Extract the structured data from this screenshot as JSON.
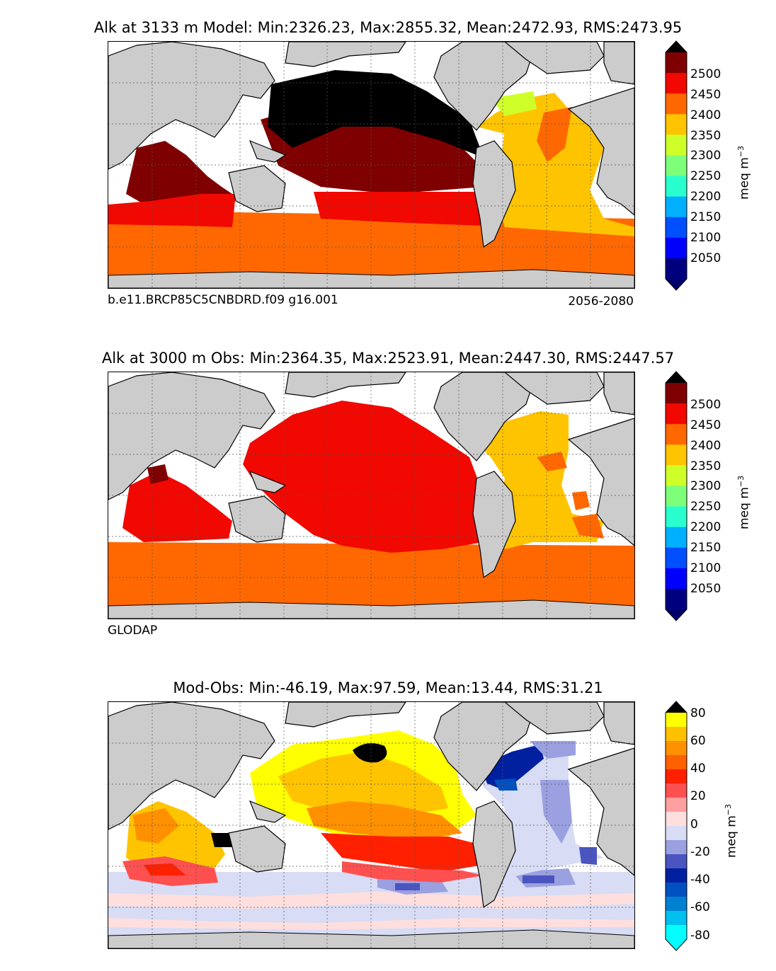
{
  "chart_data": [
    {
      "type": "heatmap",
      "title": "Alk at 3133 m Model: Min:2326.23, Max:2855.32, Mean:2472.93, RMS:2473.95",
      "caption_left": "b.e11.BRCP85C5CNBDRD.f09 g16.001",
      "caption_right": "2056-2080",
      "colorbar": {
        "label": "meq m",
        "label_exp": "−3",
        "ticks": [
          "2500",
          "2450",
          "2400",
          "2350",
          "2300",
          "2250",
          "2200",
          "2150",
          "2100",
          "2050"
        ],
        "levels": [
          2000,
          2050,
          2100,
          2150,
          2200,
          2250,
          2300,
          2350,
          2400,
          2450,
          2500,
          2550
        ],
        "colors": [
          "#00007f",
          "#0000ff",
          "#0050ff",
          "#00b0ff",
          "#29ffce",
          "#7dff7a",
          "#ceff29",
          "#ffc400",
          "#ff6800",
          "#f10800",
          "#7f0000"
        ],
        "extend": "both",
        "under_color": "#00006a",
        "over_color": "#000000"
      },
      "stats": {
        "min": 2326.23,
        "max": 2855.32,
        "mean": 2472.93,
        "rms": 2473.95,
        "depth_m": 3133
      }
    },
    {
      "type": "heatmap",
      "title": "Alk at 3000 m Obs: Min:2364.35, Max:2523.91, Mean:2447.30, RMS:2447.57",
      "caption_left": "GLODAP",
      "caption_right": "",
      "colorbar": {
        "label": "meq m",
        "label_exp": "−3",
        "ticks": [
          "2500",
          "2450",
          "2400",
          "2350",
          "2300",
          "2250",
          "2200",
          "2150",
          "2100",
          "2050"
        ],
        "levels": [
          2000,
          2050,
          2100,
          2150,
          2200,
          2250,
          2300,
          2350,
          2400,
          2450,
          2500,
          2550
        ],
        "colors": [
          "#00007f",
          "#0000ff",
          "#0050ff",
          "#00b0ff",
          "#29ffce",
          "#7dff7a",
          "#ceff29",
          "#ffc400",
          "#ff6800",
          "#f10800",
          "#7f0000"
        ],
        "extend": "both",
        "under_color": "#00006a",
        "over_color": "#000000"
      },
      "stats": {
        "min": 2364.35,
        "max": 2523.91,
        "mean": 2447.3,
        "rms": 2447.57,
        "depth_m": 3000
      }
    },
    {
      "type": "heatmap",
      "title": "Mod-Obs: Min:-46.19, Max:97.59, Mean:13.44, RMS:31.21",
      "caption_left": "",
      "caption_right": "",
      "colorbar": {
        "label": "meq m",
        "label_exp": "−3",
        "ticks": [
          "80",
          "60",
          "40",
          "20",
          "0",
          "-20",
          "-40",
          "-60",
          "-80"
        ],
        "levels": [
          -80,
          -70,
          -60,
          -50,
          -40,
          -30,
          -20,
          -10,
          0,
          10,
          20,
          30,
          40,
          50,
          60,
          70,
          80
        ],
        "colors": [
          "#00ffff",
          "#00c0f0",
          "#0080d0",
          "#0050c0",
          "#0020a0",
          "#4a55c0",
          "#9aa0e0",
          "#d8dcf4",
          "#ffdede",
          "#ffa0a0",
          "#ff5050",
          "#ff2000",
          "#ff6000",
          "#ff9000",
          "#ffc000",
          "#ffff00"
        ],
        "extend": "both",
        "under_color": "#00ffff",
        "over_color": "#000000"
      },
      "stats": {
        "min": -46.19,
        "max": 97.59,
        "mean": 13.44,
        "rms": 31.21
      }
    }
  ],
  "colors": {
    "land": "#cccccc",
    "missing": "#ffffff",
    "coast": "#000000",
    "grid": "#555555"
  }
}
